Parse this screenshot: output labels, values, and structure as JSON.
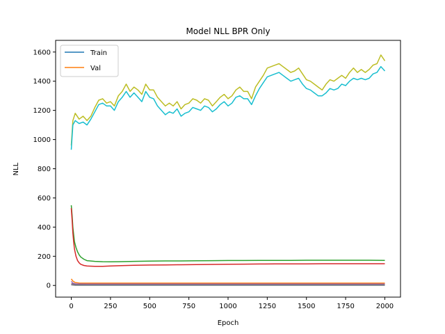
{
  "chart_data": {
    "type": "line",
    "title": "Model NLL BPR Only",
    "xlabel": "Epoch",
    "ylabel": "NLL",
    "xlim": [
      -100,
      2100
    ],
    "ylim": [
      -80,
      1680
    ],
    "xticks": [
      0,
      250,
      500,
      750,
      1000,
      1250,
      1500,
      1750,
      2000
    ],
    "yticks": [
      0,
      200,
      400,
      600,
      800,
      1000,
      1200,
      1400,
      1600
    ],
    "grid": false,
    "legend": {
      "placement": "upper-left",
      "entries": [
        {
          "label": "Train",
          "color": "#1f77b4"
        },
        {
          "label": "Val",
          "color": "#ff7f0e"
        }
      ]
    },
    "series": [
      {
        "color": "#bcbd22",
        "points": [
          [
            0,
            960
          ],
          [
            10,
            1130
          ],
          [
            25,
            1180
          ],
          [
            50,
            1140
          ],
          [
            75,
            1160
          ],
          [
            100,
            1130
          ],
          [
            125,
            1160
          ],
          [
            150,
            1220
          ],
          [
            175,
            1270
          ],
          [
            200,
            1280
          ],
          [
            225,
            1250
          ],
          [
            250,
            1260
          ],
          [
            275,
            1230
          ],
          [
            300,
            1300
          ],
          [
            325,
            1330
          ],
          [
            350,
            1380
          ],
          [
            375,
            1330
          ],
          [
            400,
            1360
          ],
          [
            425,
            1340
          ],
          [
            450,
            1310
          ],
          [
            475,
            1380
          ],
          [
            500,
            1340
          ],
          [
            525,
            1340
          ],
          [
            550,
            1290
          ],
          [
            575,
            1260
          ],
          [
            600,
            1230
          ],
          [
            625,
            1250
          ],
          [
            650,
            1230
          ],
          [
            675,
            1260
          ],
          [
            700,
            1210
          ],
          [
            725,
            1240
          ],
          [
            750,
            1250
          ],
          [
            775,
            1280
          ],
          [
            800,
            1270
          ],
          [
            825,
            1250
          ],
          [
            850,
            1280
          ],
          [
            875,
            1270
          ],
          [
            900,
            1230
          ],
          [
            925,
            1260
          ],
          [
            950,
            1290
          ],
          [
            975,
            1310
          ],
          [
            1000,
            1280
          ],
          [
            1025,
            1300
          ],
          [
            1050,
            1340
          ],
          [
            1075,
            1360
          ],
          [
            1100,
            1330
          ],
          [
            1125,
            1330
          ],
          [
            1150,
            1280
          ],
          [
            1175,
            1360
          ],
          [
            1200,
            1400
          ],
          [
            1225,
            1440
          ],
          [
            1250,
            1490
          ],
          [
            1275,
            1500
          ],
          [
            1300,
            1510
          ],
          [
            1325,
            1520
          ],
          [
            1350,
            1500
          ],
          [
            1375,
            1480
          ],
          [
            1400,
            1460
          ],
          [
            1425,
            1470
          ],
          [
            1450,
            1490
          ],
          [
            1475,
            1450
          ],
          [
            1500,
            1410
          ],
          [
            1525,
            1400
          ],
          [
            1550,
            1380
          ],
          [
            1575,
            1360
          ],
          [
            1600,
            1340
          ],
          [
            1625,
            1380
          ],
          [
            1650,
            1410
          ],
          [
            1675,
            1400
          ],
          [
            1700,
            1420
          ],
          [
            1725,
            1440
          ],
          [
            1750,
            1420
          ],
          [
            1775,
            1460
          ],
          [
            1800,
            1490
          ],
          [
            1825,
            1460
          ],
          [
            1850,
            1480
          ],
          [
            1875,
            1460
          ],
          [
            1900,
            1480
          ],
          [
            1925,
            1510
          ],
          [
            1950,
            1520
          ],
          [
            1975,
            1580
          ],
          [
            2000,
            1540
          ]
        ]
      },
      {
        "color": "#17becf",
        "points": [
          [
            0,
            930
          ],
          [
            10,
            1100
          ],
          [
            25,
            1130
          ],
          [
            50,
            1110
          ],
          [
            75,
            1120
          ],
          [
            100,
            1100
          ],
          [
            125,
            1140
          ],
          [
            150,
            1190
          ],
          [
            175,
            1240
          ],
          [
            200,
            1250
          ],
          [
            225,
            1230
          ],
          [
            250,
            1230
          ],
          [
            275,
            1200
          ],
          [
            300,
            1260
          ],
          [
            325,
            1290
          ],
          [
            350,
            1330
          ],
          [
            375,
            1290
          ],
          [
            400,
            1320
          ],
          [
            425,
            1290
          ],
          [
            450,
            1260
          ],
          [
            475,
            1330
          ],
          [
            500,
            1290
          ],
          [
            525,
            1280
          ],
          [
            550,
            1230
          ],
          [
            575,
            1200
          ],
          [
            600,
            1170
          ],
          [
            625,
            1190
          ],
          [
            650,
            1180
          ],
          [
            675,
            1210
          ],
          [
            700,
            1160
          ],
          [
            725,
            1180
          ],
          [
            750,
            1190
          ],
          [
            775,
            1220
          ],
          [
            800,
            1210
          ],
          [
            825,
            1200
          ],
          [
            850,
            1230
          ],
          [
            875,
            1220
          ],
          [
            900,
            1190
          ],
          [
            925,
            1210
          ],
          [
            950,
            1240
          ],
          [
            975,
            1260
          ],
          [
            1000,
            1230
          ],
          [
            1025,
            1250
          ],
          [
            1050,
            1290
          ],
          [
            1075,
            1300
          ],
          [
            1100,
            1280
          ],
          [
            1125,
            1280
          ],
          [
            1150,
            1240
          ],
          [
            1175,
            1300
          ],
          [
            1200,
            1350
          ],
          [
            1225,
            1390
          ],
          [
            1250,
            1430
          ],
          [
            1275,
            1440
          ],
          [
            1300,
            1450
          ],
          [
            1325,
            1460
          ],
          [
            1350,
            1440
          ],
          [
            1375,
            1420
          ],
          [
            1400,
            1400
          ],
          [
            1425,
            1410
          ],
          [
            1450,
            1420
          ],
          [
            1475,
            1380
          ],
          [
            1500,
            1350
          ],
          [
            1525,
            1340
          ],
          [
            1550,
            1320
          ],
          [
            1575,
            1300
          ],
          [
            1600,
            1300
          ],
          [
            1625,
            1320
          ],
          [
            1650,
            1350
          ],
          [
            1675,
            1340
          ],
          [
            1700,
            1350
          ],
          [
            1725,
            1380
          ],
          [
            1750,
            1370
          ],
          [
            1775,
            1400
          ],
          [
            1800,
            1420
          ],
          [
            1825,
            1410
          ],
          [
            1850,
            1420
          ],
          [
            1875,
            1410
          ],
          [
            1900,
            1420
          ],
          [
            1925,
            1450
          ],
          [
            1950,
            1460
          ],
          [
            1975,
            1500
          ],
          [
            2000,
            1470
          ]
        ]
      },
      {
        "color": "#2ca02c",
        "points": [
          [
            0,
            550
          ],
          [
            5,
            480
          ],
          [
            10,
            400
          ],
          [
            15,
            350
          ],
          [
            20,
            300
          ],
          [
            30,
            260
          ],
          [
            40,
            230
          ],
          [
            50,
            210
          ],
          [
            60,
            195
          ],
          [
            80,
            180
          ],
          [
            100,
            170
          ],
          [
            150,
            165
          ],
          [
            200,
            163
          ],
          [
            250,
            162
          ],
          [
            300,
            163
          ],
          [
            400,
            165
          ],
          [
            500,
            167
          ],
          [
            600,
            168
          ],
          [
            700,
            168
          ],
          [
            800,
            169
          ],
          [
            900,
            170
          ],
          [
            1000,
            171
          ],
          [
            1100,
            171
          ],
          [
            1200,
            172
          ],
          [
            1300,
            172
          ],
          [
            1400,
            172
          ],
          [
            1500,
            173
          ],
          [
            1600,
            173
          ],
          [
            1700,
            173
          ],
          [
            1800,
            173
          ],
          [
            1900,
            173
          ],
          [
            2000,
            172
          ]
        ]
      },
      {
        "color": "#d62728",
        "points": [
          [
            0,
            530
          ],
          [
            5,
            450
          ],
          [
            10,
            360
          ],
          [
            15,
            300
          ],
          [
            20,
            250
          ],
          [
            30,
            200
          ],
          [
            40,
            170
          ],
          [
            50,
            155
          ],
          [
            60,
            145
          ],
          [
            80,
            137
          ],
          [
            100,
            133
          ],
          [
            150,
            131
          ],
          [
            200,
            131
          ],
          [
            250,
            133
          ],
          [
            300,
            135
          ],
          [
            400,
            138
          ],
          [
            500,
            140
          ],
          [
            600,
            141
          ],
          [
            700,
            142
          ],
          [
            800,
            143
          ],
          [
            900,
            144
          ],
          [
            1000,
            145
          ],
          [
            1100,
            146
          ],
          [
            1200,
            147
          ],
          [
            1300,
            148
          ],
          [
            1400,
            148
          ],
          [
            1500,
            148
          ],
          [
            1600,
            149
          ],
          [
            1700,
            149
          ],
          [
            1800,
            149
          ],
          [
            1900,
            149
          ],
          [
            2000,
            149
          ]
        ]
      },
      {
        "color": "#ff7f0e",
        "points": [
          [
            0,
            45
          ],
          [
            10,
            30
          ],
          [
            25,
            20
          ],
          [
            50,
            17
          ],
          [
            100,
            16
          ],
          [
            200,
            16
          ],
          [
            500,
            16
          ],
          [
            1000,
            16
          ],
          [
            1500,
            16
          ],
          [
            2000,
            16
          ]
        ]
      },
      {
        "color": "#9467bd",
        "points": [
          [
            0,
            28
          ],
          [
            10,
            16
          ],
          [
            25,
            11
          ],
          [
            50,
            10
          ],
          [
            100,
            9
          ],
          [
            500,
            9
          ],
          [
            1000,
            9
          ],
          [
            1500,
            9
          ],
          [
            2000,
            9
          ]
        ]
      },
      {
        "color": "#8c564b",
        "points": [
          [
            0,
            12
          ],
          [
            25,
            6
          ],
          [
            100,
            5
          ],
          [
            2000,
            5
          ]
        ]
      },
      {
        "color": "#e377c2",
        "points": [
          [
            0,
            8
          ],
          [
            25,
            3
          ],
          [
            100,
            3
          ],
          [
            2000,
            3
          ]
        ]
      },
      {
        "color": "#1f77b4",
        "points": [
          [
            0,
            6
          ],
          [
            25,
            2
          ],
          [
            100,
            2
          ],
          [
            2000,
            2
          ]
        ]
      },
      {
        "color": "#7f7f7f",
        "points": [
          [
            0,
            4
          ],
          [
            25,
            1
          ],
          [
            100,
            1
          ],
          [
            2000,
            1
          ]
        ]
      }
    ]
  }
}
